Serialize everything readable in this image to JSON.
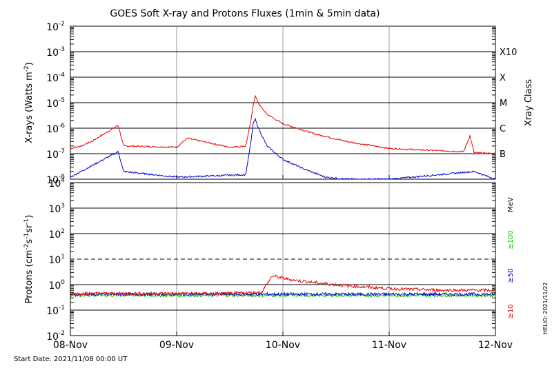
{
  "title": "GOES Soft X-ray and Protons Fluxes   (1min & 5min data)",
  "start_date": "Start Date: 2021/11/08 00:00 UT",
  "helio_credit": "HELIO: 2021/11/22",
  "colors": {
    "red": "#ee0000",
    "blue": "#0000cc",
    "green": "#00cc00",
    "grid": "#999999",
    "axis": "#000000"
  },
  "x_axis": {
    "tick_labels": [
      "08-Nov",
      "09-Nov",
      "10-Nov",
      "11-Nov",
      "12-Nov"
    ],
    "range_days": [
      0,
      4
    ]
  },
  "chart_data": [
    {
      "type": "line",
      "panel": "xray",
      "ylabel_main": "X-rays (Watts m",
      "ylabel_sup": "-2",
      "ylabel_close": ")",
      "y_scale": "log",
      "ylim": [
        1e-08,
        0.01
      ],
      "y_tick_labels": [
        {
          "base": "10",
          "exp": "-2"
        },
        {
          "base": "10",
          "exp": "-3"
        },
        {
          "base": "10",
          "exp": "-4"
        },
        {
          "base": "10",
          "exp": "-5"
        },
        {
          "base": "10",
          "exp": "-6"
        },
        {
          "base": "10",
          "exp": "-7"
        },
        {
          "base": "10",
          "exp": "-8"
        }
      ],
      "right_axis_label": "Xray Class",
      "flare_classes": [
        {
          "label": "X10",
          "value": 0.001
        },
        {
          "label": "X",
          "value": 0.0001
        },
        {
          "label": "M",
          "value": 1e-05
        },
        {
          "label": "C",
          "value": 1e-06
        },
        {
          "label": "B",
          "value": 1e-07
        }
      ],
      "series": [
        {
          "color": "#ee0000",
          "x": [
            0,
            0.1,
            0.2,
            0.45,
            0.5,
            1.0,
            1.1,
            1.5,
            1.65,
            1.7,
            1.72,
            1.74,
            1.78,
            1.85,
            2.0,
            2.3,
            2.6,
            3.0,
            3.5,
            3.7,
            3.76,
            3.8,
            4.0
          ],
          "y": [
            1.6e-07,
            2e-07,
            3e-07,
            1.3e-06,
            2e-07,
            1.8e-07,
            4e-07,
            1.8e-07,
            2e-07,
            2e-06,
            8e-06,
            1.8e-05,
            8e-06,
            3.5e-06,
            1.5e-06,
            6e-07,
            3e-07,
            1.6e-07,
            1.3e-07,
            1.2e-07,
            5e-07,
            1.1e-07,
            1e-07
          ]
        },
        {
          "color": "#0000cc",
          "x": [
            0,
            0.45,
            0.5,
            1.0,
            1.65,
            1.7,
            1.72,
            1.74,
            1.78,
            1.85,
            2.0,
            2.2,
            2.4,
            2.6,
            3.0,
            3.8,
            4.0
          ],
          "y": [
            1.2e-08,
            1.2e-07,
            2e-08,
            1.2e-08,
            1.5e-08,
            3e-07,
            1.5e-06,
            2.2e-06,
            8e-07,
            2e-07,
            6e-08,
            2.5e-08,
            1.2e-08,
            1e-08,
            1e-08,
            2e-08,
            1e-08
          ]
        }
      ]
    },
    {
      "type": "line",
      "panel": "protons",
      "ylabel_main": "Protons (cm",
      "ylabel_sup1": "-2",
      "ylabel_mid1": "s",
      "ylabel_sup2": "-1",
      "ylabel_mid2": "sr",
      "ylabel_sup3": "-1",
      "ylabel_close": ")",
      "y_scale": "log",
      "ylim": [
        0.01,
        10000
      ],
      "y_tick_labels": [
        {
          "base": "10",
          "exp": "4"
        },
        {
          "base": "10",
          "exp": "3"
        },
        {
          "base": "10",
          "exp": "2"
        },
        {
          "base": "10",
          "exp": "1"
        },
        {
          "base": "10",
          "exp": "0"
        },
        {
          "base": "10",
          "exp": "-1"
        },
        {
          "base": "10",
          "exp": "-2"
        }
      ],
      "threshold_line": 10,
      "right_labels": [
        {
          "text": "MeV",
          "color": "#000000"
        },
        {
          "text": "≥100",
          "color": "#00cc00"
        },
        {
          "text": "≥50",
          "color": "#0000cc"
        },
        {
          "text": "≥10",
          "color": "#ee0000"
        }
      ],
      "series": [
        {
          "color": "#00cc00",
          "x": [
            0,
            1.0,
            2.0,
            3.0,
            4.0
          ],
          "y": [
            0.38,
            0.38,
            0.38,
            0.38,
            0.38
          ]
        },
        {
          "color": "#0000cc",
          "x": [
            0,
            1.0,
            2.0,
            3.0,
            4.0
          ],
          "y": [
            0.42,
            0.42,
            0.42,
            0.42,
            0.42
          ]
        },
        {
          "color": "#ee0000",
          "x": [
            0,
            1.0,
            1.5,
            1.8,
            1.9,
            2.0,
            2.1,
            2.3,
            2.6,
            3.0,
            3.5,
            4.0
          ],
          "y": [
            0.45,
            0.45,
            0.45,
            0.5,
            2.2,
            1.8,
            1.5,
            1.2,
            0.9,
            0.7,
            0.6,
            0.6
          ]
        }
      ]
    }
  ]
}
